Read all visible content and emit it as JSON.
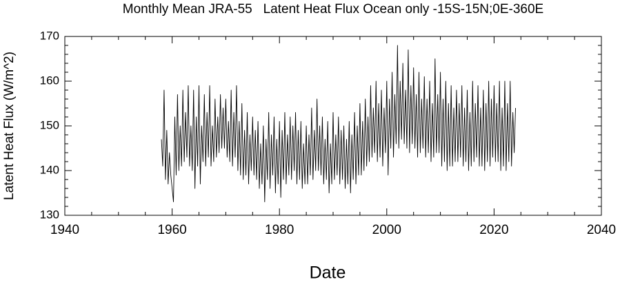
{
  "chart_data": {
    "type": "line",
    "title": "Monthly Mean JRA-55   Latent Heat Flux Ocean only -15S-15N;0E-360E",
    "x_label": "Date",
    "y_label": "Latent Heat Flux (W/m^2)",
    "xlim": [
      1940,
      2040
    ],
    "xticks": [
      1940,
      1960,
      1980,
      2000,
      2020,
      2040
    ],
    "ylim": [
      130,
      170
    ],
    "yticks": [
      130,
      140,
      150,
      160,
      170
    ],
    "grid": false,
    "series": [
      {
        "name": "Latent Heat Flux",
        "color": "#000000",
        "x": [
          1958,
          1958.25,
          1958.5,
          1958.75,
          1959,
          1959.25,
          1959.5,
          1959.75,
          1960,
          1960.25,
          1960.5,
          1960.75,
          1961,
          1961.25,
          1961.5,
          1961.75,
          1962,
          1962.25,
          1962.5,
          1962.75,
          1963,
          1963.25,
          1963.5,
          1963.75,
          1964,
          1964.25,
          1964.5,
          1964.75,
          1965,
          1965.25,
          1965.5,
          1965.75,
          1966,
          1966.25,
          1966.5,
          1966.75,
          1967,
          1967.25,
          1967.5,
          1967.75,
          1968,
          1968.25,
          1968.5,
          1968.75,
          1969,
          1969.25,
          1969.5,
          1969.75,
          1970,
          1970.25,
          1970.5,
          1970.75,
          1971,
          1971.25,
          1971.5,
          1971.75,
          1972,
          1972.25,
          1972.5,
          1972.75,
          1973,
          1973.25,
          1973.5,
          1973.75,
          1974,
          1974.25,
          1974.5,
          1974.75,
          1975,
          1975.25,
          1975.5,
          1975.75,
          1976,
          1976.25,
          1976.5,
          1976.75,
          1977,
          1977.25,
          1977.5,
          1977.75,
          1978,
          1978.25,
          1978.5,
          1978.75,
          1979,
          1979.25,
          1979.5,
          1979.75,
          1980,
          1980.25,
          1980.5,
          1980.75,
          1981,
          1981.25,
          1981.5,
          1981.75,
          1982,
          1982.25,
          1982.5,
          1982.75,
          1983,
          1983.25,
          1983.5,
          1983.75,
          1984,
          1984.25,
          1984.5,
          1984.75,
          1985,
          1985.25,
          1985.5,
          1985.75,
          1986,
          1986.25,
          1986.5,
          1986.75,
          1987,
          1987.25,
          1987.5,
          1987.75,
          1988,
          1988.25,
          1988.5,
          1988.75,
          1989,
          1989.25,
          1989.5,
          1989.75,
          1990,
          1990.25,
          1990.5,
          1990.75,
          1991,
          1991.25,
          1991.5,
          1991.75,
          1992,
          1992.25,
          1992.5,
          1992.75,
          1993,
          1993.25,
          1993.5,
          1993.75,
          1994,
          1994.25,
          1994.5,
          1994.75,
          1995,
          1995.25,
          1995.5,
          1995.75,
          1996,
          1996.25,
          1996.5,
          1996.75,
          1997,
          1997.25,
          1997.5,
          1997.75,
          1998,
          1998.25,
          1998.5,
          1998.75,
          1999,
          1999.25,
          1999.5,
          1999.75,
          2000,
          2000.25,
          2000.5,
          2000.75,
          2001,
          2001.25,
          2001.5,
          2001.75,
          2002,
          2002.25,
          2002.5,
          2002.75,
          2003,
          2003.25,
          2003.5,
          2003.75,
          2004,
          2004.25,
          2004.5,
          2004.75,
          2005,
          2005.25,
          2005.5,
          2005.75,
          2006,
          2006.25,
          2006.5,
          2006.75,
          2007,
          2007.25,
          2007.5,
          2007.75,
          2008,
          2008.25,
          2008.5,
          2008.75,
          2009,
          2009.25,
          2009.5,
          2009.75,
          2010,
          2010.25,
          2010.5,
          2010.75,
          2011,
          2011.25,
          2011.5,
          2011.75,
          2012,
          2012.25,
          2012.5,
          2012.75,
          2013,
          2013.25,
          2013.5,
          2013.75,
          2014,
          2014.25,
          2014.5,
          2014.75,
          2015,
          2015.25,
          2015.5,
          2015.75,
          2016,
          2016.25,
          2016.5,
          2016.75,
          2017,
          2017.25,
          2017.5,
          2017.75,
          2018,
          2018.25,
          2018.5,
          2018.75,
          2019,
          2019.25,
          2019.5,
          2019.75,
          2020,
          2020.25,
          2020.5,
          2020.75,
          2021,
          2021.25,
          2021.5,
          2021.75,
          2022,
          2022.25,
          2022.5,
          2022.75,
          2023,
          2023.25,
          2023.5,
          2023.75,
          2024
        ],
        "values": [
          147,
          141,
          158,
          138,
          149,
          137,
          144,
          139,
          136,
          133,
          152,
          139,
          157,
          140,
          150,
          141,
          158,
          142,
          153,
          143,
          159,
          141,
          150,
          140,
          158,
          136,
          152,
          141,
          159,
          137,
          150,
          142,
          157,
          141,
          153,
          143,
          159,
          141,
          150,
          142,
          156,
          143,
          152,
          144,
          157,
          145,
          154,
          145,
          156,
          143,
          151,
          142,
          158,
          141,
          153,
          143,
          159,
          140,
          151,
          139,
          155,
          138,
          149,
          139,
          153,
          137,
          148,
          140,
          152,
          139,
          149,
          138,
          151,
          136,
          146,
          137,
          150,
          133,
          147,
          138,
          153,
          136,
          148,
          139,
          152,
          135,
          147,
          137,
          151,
          134,
          149,
          138,
          153,
          137,
          148,
          139,
          152,
          138,
          150,
          140,
          153,
          137,
          149,
          138,
          151,
          136,
          146,
          137,
          150,
          137,
          148,
          139,
          154,
          138,
          149,
          140,
          156,
          140,
          150,
          139,
          152,
          137,
          147,
          138,
          151,
          135,
          146,
          137,
          153,
          138,
          148,
          139,
          152,
          137,
          149,
          138,
          150,
          136,
          147,
          137,
          151,
          135,
          148,
          138,
          153,
          137,
          150,
          139,
          155,
          139,
          151,
          140,
          156,
          141,
          152,
          142,
          159,
          143,
          154,
          144,
          160,
          142,
          155,
          143,
          158,
          141,
          154,
          144,
          160,
          139,
          156,
          145,
          162,
          143,
          157,
          146,
          168,
          145,
          160,
          147,
          164,
          146,
          158,
          145,
          167,
          144,
          159,
          146,
          163,
          145,
          157,
          143,
          162,
          144,
          156,
          145,
          161,
          143,
          156,
          144,
          160,
          142,
          155,
          143,
          165,
          144,
          157,
          144,
          162,
          141,
          156,
          142,
          160,
          140,
          155,
          141,
          159,
          141,
          154,
          142,
          158,
          142,
          155,
          143,
          159,
          141,
          154,
          142,
          158,
          140,
          153,
          141,
          160,
          142,
          155,
          143,
          159,
          141,
          154,
          141,
          158,
          140,
          155,
          142,
          160,
          141,
          156,
          143,
          159,
          142,
          155,
          142,
          160,
          140,
          154,
          141,
          160,
          140,
          155,
          142,
          160,
          141,
          153,
          144,
          154
        ]
      }
    ]
  }
}
